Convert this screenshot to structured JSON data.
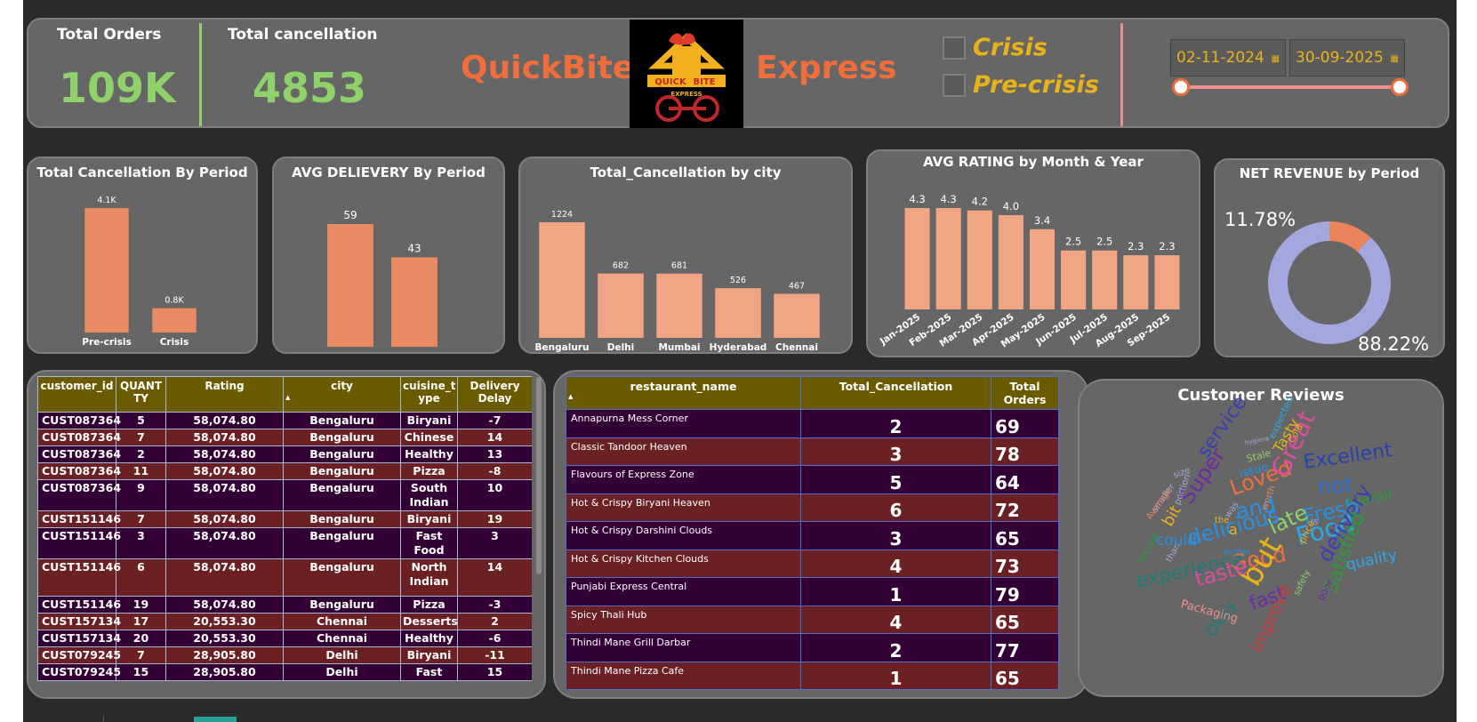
{
  "kpis": {
    "total_orders_label": "Total Orders",
    "total_orders_value": "109K",
    "total_cancellation_label": "Total cancellation",
    "total_cancellation_value": "4853"
  },
  "brand": {
    "left": "QuickBite",
    "right": "Express",
    "logo_text_top": "QUICK",
    "logo_text_mid": "BITE",
    "logo_text_bottom": "EXPRESS"
  },
  "filters": {
    "periods": [
      {
        "label": "Crisis"
      },
      {
        "label": "Pre-crisis"
      }
    ],
    "date_start": "02-11-2024",
    "date_end": "30-09-2025"
  },
  "charts": {
    "cancel_by_period": {
      "title": "Total Cancellation By Period",
      "chart_data": {
        "type": "bar",
        "categories": [
          "Pre-crisis",
          "Crisis"
        ],
        "values": [
          4100,
          800
        ],
        "data_labels": [
          "4.1K",
          "0.8K"
        ]
      }
    },
    "avg_delivery_by_period": {
      "title": "AVG DELIEVERY By Period",
      "chart_data": {
        "type": "bar",
        "categories": [
          "Crisis",
          "Pre-crisis"
        ],
        "values": [
          59,
          43
        ],
        "data_labels": [
          "59",
          "43"
        ]
      }
    },
    "cancel_by_city": {
      "title": "Total_Cancellation by city",
      "chart_data": {
        "type": "bar",
        "categories": [
          "Bengaluru",
          "Delhi",
          "Mumbai",
          "Hyderabad",
          "Chennai"
        ],
        "values": [
          1224,
          682,
          681,
          526,
          467
        ],
        "data_labels": [
          "1224",
          "682",
          "681",
          "526",
          "467"
        ]
      }
    },
    "avg_rating_by_month": {
      "title": "AVG RATING by Month & Year",
      "chart_data": {
        "type": "bar",
        "categories": [
          "Jan-2025",
          "Feb-2025",
          "Mar-2025",
          "Apr-2025",
          "May-2025",
          "Jun-2025",
          "Jul-2025",
          "Aug-2025",
          "Sep-2025"
        ],
        "values": [
          4.3,
          4.3,
          4.2,
          4.0,
          3.4,
          2.5,
          2.5,
          2.3,
          2.3
        ],
        "data_labels": [
          "4.3",
          "4.3",
          "4.2",
          "4.0",
          "3.4",
          "2.5",
          "2.5",
          "2.3",
          "2.3"
        ]
      }
    },
    "net_revenue_by_period": {
      "title": "NET REVENUE by Period",
      "chart_data": {
        "type": "pie",
        "slices": [
          {
            "label": "11.78%",
            "value": 11.78,
            "color": "#e9845a"
          },
          {
            "label": "88.22%",
            "value": 88.22,
            "color": "#a2a8dd"
          }
        ]
      }
    }
  },
  "orders_table": {
    "headers": [
      "customer_id",
      "QUANTITY",
      "Rating",
      "city",
      "cuisine_type",
      "Delivery Delay"
    ],
    "header_display": [
      [
        "customer_id"
      ],
      [
        "QUANT",
        "TY"
      ],
      [
        "Rating"
      ],
      [
        "city"
      ],
      [
        "cuisine_t",
        "ype"
      ],
      [
        "Delivery",
        "Delay"
      ]
    ],
    "rows": [
      {
        "customer_id": "CUST087364",
        "quantity": "5",
        "rating": "58,074.80",
        "city": "Bengaluru",
        "cuisine": [
          "Biryani"
        ],
        "delay": "-7",
        "tone": "purple"
      },
      {
        "customer_id": "CUST087364",
        "quantity": "7",
        "rating": "58,074.80",
        "city": "Bengaluru",
        "cuisine": [
          "Chinese"
        ],
        "delay": "14",
        "tone": "red"
      },
      {
        "customer_id": "CUST087364",
        "quantity": "2",
        "rating": "58,074.80",
        "city": "Bengaluru",
        "cuisine": [
          "Healthy"
        ],
        "delay": "13",
        "tone": "purple"
      },
      {
        "customer_id": "CUST087364",
        "quantity": "11",
        "rating": "58,074.80",
        "city": "Bengaluru",
        "cuisine": [
          "Pizza"
        ],
        "delay": "-8",
        "tone": "red"
      },
      {
        "customer_id": "CUST087364",
        "quantity": "9",
        "rating": "58,074.80",
        "city": "Bengaluru",
        "cuisine": [
          "South",
          "Indian"
        ],
        "delay": "10",
        "tone": "purple"
      },
      {
        "customer_id": "CUST151146",
        "quantity": "7",
        "rating": "58,074.80",
        "city": "Bengaluru",
        "cuisine": [
          "Biryani"
        ],
        "delay": "19",
        "tone": "red"
      },
      {
        "customer_id": "CUST151146",
        "quantity": "3",
        "rating": "58,074.80",
        "city": "Bengaluru",
        "cuisine": [
          "Fast",
          "Food"
        ],
        "delay": "3",
        "tone": "purple"
      },
      {
        "customer_id": "CUST151146",
        "quantity": "6",
        "rating": "58,074.80",
        "city": "Bengaluru",
        "cuisine": [
          "North",
          "Indian"
        ],
        "delay": "14",
        "tone": "red",
        "tall": true
      },
      {
        "customer_id": "CUST151146",
        "quantity": "19",
        "rating": "58,074.80",
        "city": "Bengaluru",
        "cuisine": [
          "Pizza"
        ],
        "delay": "-3",
        "tone": "purple"
      },
      {
        "customer_id": "CUST157134",
        "quantity": "17",
        "rating": "20,553.30",
        "city": "Chennai",
        "cuisine": [
          "Desserts"
        ],
        "delay": "2",
        "tone": "red"
      },
      {
        "customer_id": "CUST157134",
        "quantity": "20",
        "rating": "20,553.30",
        "city": "Chennai",
        "cuisine": [
          "Healthy"
        ],
        "delay": "-6",
        "tone": "purple"
      },
      {
        "customer_id": "CUST079245",
        "quantity": "7",
        "rating": "28,905.80",
        "city": "Delhi",
        "cuisine": [
          "Biryani"
        ],
        "delay": "-11",
        "tone": "red"
      },
      {
        "customer_id": "CUST079245",
        "quantity": "15",
        "rating": "28,905.80",
        "city": "Delhi",
        "cuisine": [
          "Fast"
        ],
        "delay": "15",
        "tone": "purple"
      }
    ]
  },
  "restaurant_table": {
    "headers": [
      "restaurant_name",
      "Total_Cancellation",
      "Total Orders"
    ],
    "rows": [
      {
        "name": "Annapurna Mess Corner",
        "cancellation": "2",
        "orders": "69",
        "tone": "purple"
      },
      {
        "name": "Classic Tandoor Heaven",
        "cancellation": "3",
        "orders": "78",
        "tone": "red"
      },
      {
        "name": "Flavours of Express Zone",
        "cancellation": "5",
        "orders": "64",
        "tone": "purple"
      },
      {
        "name": "Hot & Crispy Biryani Heaven",
        "cancellation": "6",
        "orders": "72",
        "tone": "red"
      },
      {
        "name": "Hot & Crispy Darshini Clouds",
        "cancellation": "3",
        "orders": "65",
        "tone": "purple"
      },
      {
        "name": "Hot & Crispy Kitchen Clouds",
        "cancellation": "4",
        "orders": "73",
        "tone": "red"
      },
      {
        "name": "Punjabi Express Central",
        "cancellation": "1",
        "orders": "79",
        "tone": "purple"
      },
      {
        "name": "Spicy Thali Hub",
        "cancellation": "4",
        "orders": "65",
        "tone": "red"
      },
      {
        "name": "Thindi Mane Grill Darbar",
        "cancellation": "2",
        "orders": "77",
        "tone": "purple"
      },
      {
        "name": "Thindi Mane Pizza Cafe",
        "cancellation": "1",
        "orders": "65",
        "tone": "red"
      }
    ]
  },
  "reviews": {
    "title": "Customer Reviews",
    "words": [
      {
        "text": "Excellent",
        "color": "#2741b0"
      },
      {
        "text": "service",
        "color": "#3b3fb5"
      },
      {
        "text": "Super",
        "color": "#6d2ba8"
      },
      {
        "text": "Loved",
        "color": "#ef6e3c"
      },
      {
        "text": "not",
        "color": "#2d6fd6"
      },
      {
        "text": "overall",
        "color": "#2e9a3a"
      },
      {
        "text": "Fresh",
        "color": "#2591e8"
      },
      {
        "text": "and",
        "color": "#2591e8"
      },
      {
        "text": "late",
        "color": "#8fd16a"
      },
      {
        "text": "Great",
        "color": "#d94f9b"
      },
      {
        "text": "Food",
        "color": "#2ba8e8"
      },
      {
        "text": "delicious",
        "color": "#2591e8"
      },
      {
        "text": "Good",
        "color": "#ef6e3c"
      },
      {
        "text": "but",
        "color": "#e7b319"
      },
      {
        "text": "delivery",
        "color": "#3b3fb5"
      },
      {
        "text": "quality",
        "color": "#2ba8e8"
      },
      {
        "text": "experience",
        "color": "#1f7a7a"
      },
      {
        "text": "taste",
        "color": "#d94f9b"
      },
      {
        "text": "fast",
        "color": "#6d2ba8"
      },
      {
        "text": "Satisfied",
        "color": "#2e9a3a"
      },
      {
        "text": "improve",
        "color": "#c63a3a"
      },
      {
        "text": "Okay",
        "color": "#1f7a7a"
      },
      {
        "text": "Packaging",
        "color": "#ef8f8f"
      },
      {
        "text": "Tasty",
        "color": "#e7b319"
      },
      {
        "text": "Cold",
        "color": "#e7b319"
      },
      {
        "text": "bit",
        "color": "#e7b319"
      },
      {
        "text": "a",
        "color": "#e7b319"
      },
      {
        "text": "issue",
        "color": "#2591e8"
      },
      {
        "text": "Stale",
        "color": "#8fd16a"
      },
      {
        "text": "expected",
        "color": "#2ba8e8"
      },
      {
        "text": "hygiene",
        "color": "#a2a8dd"
      },
      {
        "text": "size",
        "color": "#a2a8dd"
      },
      {
        "text": "portion",
        "color": "#a2a8dd"
      },
      {
        "text": "smaller",
        "color": "#a2a8dd"
      },
      {
        "text": "Average",
        "color": "#e9845a"
      },
      {
        "text": "served",
        "color": "#2e9a3a"
      },
      {
        "text": "than",
        "color": "#a2a8dd"
      },
      {
        "text": "could",
        "color": "#2591e8"
      },
      {
        "text": "poor",
        "color": "#6d2ba8"
      },
      {
        "text": "price",
        "color": "#e7b319"
      },
      {
        "text": "worth",
        "color": "#e9845a"
      },
      {
        "text": "was",
        "color": "#a2a8dd"
      },
      {
        "text": "the",
        "color": "#e7b319"
      },
      {
        "text": "is",
        "color": "#a2a8dd"
      },
      {
        "text": "terrible",
        "color": "#2591e8"
      },
      {
        "text": "safety",
        "color": "#8fd16a"
      }
    ]
  },
  "colors": {
    "bar": "#ea8a62",
    "bar_light": "#f0a585",
    "accent": "#ef6e3c",
    "kpi": "#8fd16a",
    "gold": "#e7b319"
  }
}
